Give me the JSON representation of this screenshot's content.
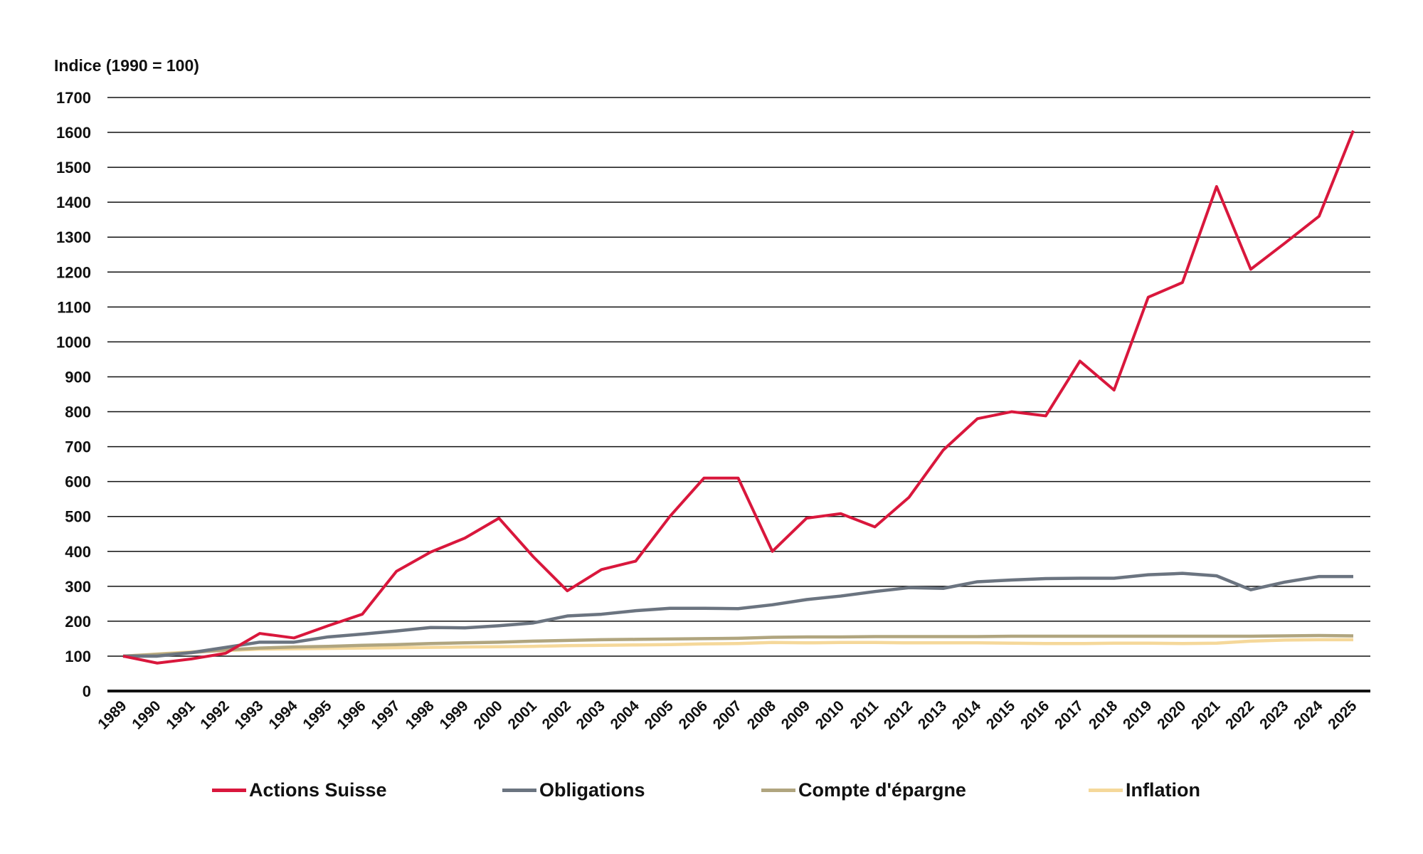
{
  "chart_data": {
    "type": "line",
    "ylabel": "Indice (1990 = 100)",
    "ylim": [
      0,
      1700
    ],
    "yticks": [
      0,
      100,
      200,
      300,
      400,
      500,
      600,
      700,
      800,
      900,
      1000,
      1100,
      1200,
      1300,
      1400,
      1500,
      1600,
      1700
    ],
    "grid": true,
    "legend_position": "bottom",
    "x": [
      "1989",
      "1990",
      "1991",
      "1992",
      "1993",
      "1994",
      "1995",
      "1996",
      "1997",
      "1998",
      "1999",
      "2000",
      "2001",
      "2002",
      "2003",
      "2004",
      "2005",
      "2006",
      "2007",
      "2008",
      "2009",
      "2010",
      "2011",
      "2012",
      "2013",
      "2014",
      "2015",
      "2016",
      "2017",
      "2018",
      "2019",
      "2020",
      "2021",
      "2022",
      "2023",
      "2024",
      "2025"
    ],
    "series": [
      {
        "name": "Actions Suisse",
        "color": "#d9173c",
        "values": [
          100,
          80,
          92,
          108,
          165,
          152,
          187,
          220,
          343,
          398,
          438,
          495,
          385,
          287,
          348,
          372,
          500,
          610,
          610,
          400,
          495,
          508,
          470,
          555,
          690,
          780,
          800,
          788,
          945,
          862,
          1128,
          1170,
          1445,
          1208,
          1283,
          1360,
          1605
        ]
      },
      {
        "name": "Obligations",
        "color": "#6b7480",
        "values": [
          100,
          100,
          110,
          125,
          140,
          140,
          155,
          163,
          172,
          182,
          181,
          187,
          195,
          215,
          220,
          230,
          237,
          237,
          236,
          247,
          262,
          272,
          285,
          296,
          294,
          313,
          318,
          322,
          323,
          323,
          333,
          337,
          330,
          290,
          312,
          328,
          328
        ]
      },
      {
        "name": "Compte d'épargne",
        "color": "#b0a57f",
        "values": [
          100,
          105,
          110,
          118,
          123,
          126,
          128,
          131,
          133,
          136,
          138,
          140,
          143,
          145,
          147,
          148,
          149,
          150,
          151,
          154,
          155,
          155,
          156,
          156,
          156,
          156,
          157,
          157,
          157,
          157,
          157,
          157,
          157,
          157,
          158,
          159,
          158
        ]
      },
      {
        "name": "Inflation",
        "color": "#f5d89a",
        "values": [
          100,
          106,
          112,
          116,
          120,
          121,
          122,
          123,
          124,
          125,
          126,
          127,
          128,
          130,
          131,
          132,
          133,
          135,
          136,
          139,
          138,
          139,
          139,
          138,
          138,
          138,
          137,
          136,
          136,
          137,
          137,
          136,
          137,
          143,
          146,
          147,
          147
        ]
      }
    ]
  }
}
